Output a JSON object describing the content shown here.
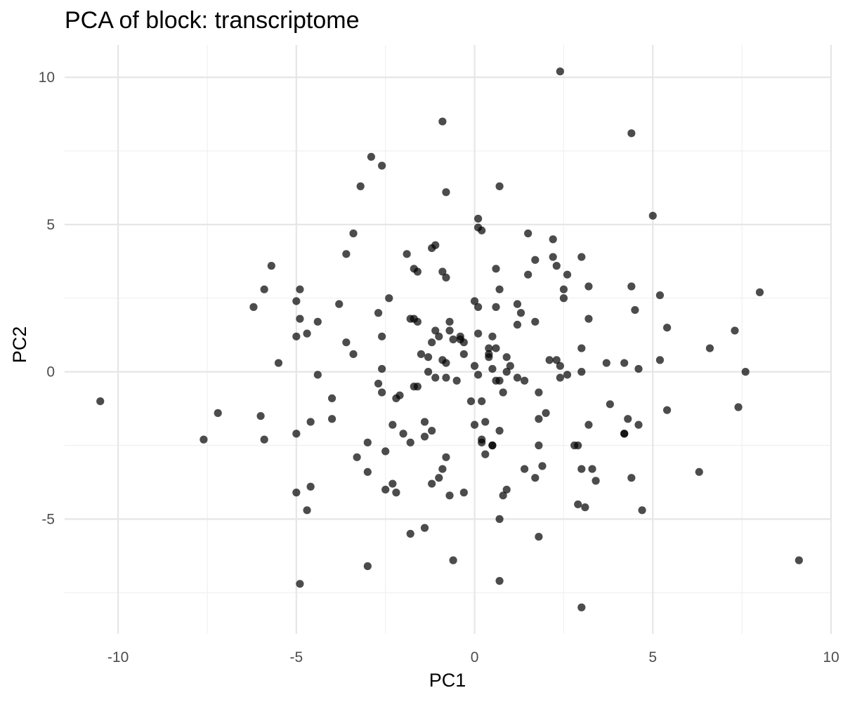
{
  "chart_data": {
    "type": "scatter",
    "title": "PCA of block: transcriptome",
    "xlabel": "PC1",
    "ylabel": "PC2",
    "xlim": [
      -11.5,
      10
    ],
    "ylim": [
      -8.9,
      11.1
    ],
    "x_ticks": [
      -10,
      -5,
      0,
      5,
      10
    ],
    "y_ticks": [
      -5,
      0,
      5,
      10
    ],
    "x_tick_labels": [
      "-10",
      "-5",
      "0",
      "5",
      "10"
    ],
    "y_tick_labels": [
      "-5",
      "0",
      "5",
      "10"
    ],
    "grid": true,
    "marker_color": "#000000",
    "marker_opacity": 0.7,
    "points": [
      [
        -10.5,
        -1.0
      ],
      [
        -7.6,
        -2.3
      ],
      [
        -7.2,
        -1.4
      ],
      [
        -6.2,
        2.2
      ],
      [
        -6.0,
        -1.5
      ],
      [
        -5.9,
        2.8
      ],
      [
        -5.9,
        -2.3
      ],
      [
        -5.7,
        3.6
      ],
      [
        -5.5,
        0.3
      ],
      [
        -5.0,
        2.4
      ],
      [
        -5.0,
        1.2
      ],
      [
        -5.0,
        -2.1
      ],
      [
        -5.0,
        -4.1
      ],
      [
        -4.9,
        2.8
      ],
      [
        -4.9,
        1.8
      ],
      [
        -4.9,
        -7.2
      ],
      [
        -4.7,
        1.3
      ],
      [
        -4.7,
        -4.7
      ],
      [
        -4.6,
        -1.7
      ],
      [
        -4.6,
        -3.9
      ],
      [
        -4.4,
        1.7
      ],
      [
        -4.4,
        -0.1
      ],
      [
        -4.0,
        -0.9
      ],
      [
        -4.0,
        -1.6
      ],
      [
        -3.8,
        2.3
      ],
      [
        -3.6,
        4.0
      ],
      [
        -3.6,
        1.0
      ],
      [
        -3.4,
        4.7
      ],
      [
        -3.4,
        0.6
      ],
      [
        -3.3,
        -2.9
      ],
      [
        -3.2,
        6.3
      ],
      [
        -3.0,
        -6.6
      ],
      [
        -3.0,
        -2.4
      ],
      [
        -3.0,
        -3.4
      ],
      [
        -2.9,
        7.3
      ],
      [
        -2.7,
        2.0
      ],
      [
        -2.7,
        -0.4
      ],
      [
        -2.6,
        7.0
      ],
      [
        -2.6,
        1.2
      ],
      [
        -2.6,
        0.1
      ],
      [
        -2.6,
        -0.7
      ],
      [
        -2.5,
        -2.7
      ],
      [
        -2.5,
        -4.0
      ],
      [
        -2.4,
        2.5
      ],
      [
        -2.3,
        -1.8
      ],
      [
        -2.3,
        -3.8
      ],
      [
        -2.2,
        -0.9
      ],
      [
        -2.2,
        -4.1
      ],
      [
        -2.1,
        -0.8
      ],
      [
        -2.0,
        -2.1
      ],
      [
        -1.9,
        4.0
      ],
      [
        -1.8,
        1.8
      ],
      [
        -1.8,
        -5.5
      ],
      [
        -1.8,
        -2.4
      ],
      [
        -1.7,
        3.5
      ],
      [
        -1.7,
        1.8
      ],
      [
        -1.7,
        -0.5
      ],
      [
        -1.6,
        -0.5
      ],
      [
        -1.6,
        3.4
      ],
      [
        -1.6,
        1.7
      ],
      [
        -1.5,
        0.6
      ],
      [
        -1.4,
        -1.7
      ],
      [
        -1.4,
        -5.3
      ],
      [
        -1.4,
        -2.2
      ],
      [
        -1.3,
        0.0
      ],
      [
        -1.3,
        0.5
      ],
      [
        -1.2,
        -2.0
      ],
      [
        -1.2,
        -3.8
      ],
      [
        -1.2,
        1.0
      ],
      [
        -1.2,
        4.2
      ],
      [
        -1.1,
        1.4
      ],
      [
        -1.1,
        -0.2
      ],
      [
        -1.1,
        4.3
      ],
      [
        -1.0,
        1.2
      ],
      [
        -1.0,
        -3.6
      ],
      [
        -0.9,
        8.5
      ],
      [
        -0.9,
        3.4
      ],
      [
        -0.9,
        0.4
      ],
      [
        -0.9,
        -3.3
      ],
      [
        -0.8,
        3.2
      ],
      [
        -0.8,
        0.3
      ],
      [
        -0.8,
        -0.2
      ],
      [
        -0.8,
        -2.9
      ],
      [
        -0.8,
        6.1
      ],
      [
        -0.7,
        1.4
      ],
      [
        -0.7,
        1.7
      ],
      [
        -0.7,
        -4.2
      ],
      [
        -0.6,
        1.1
      ],
      [
        -0.6,
        -6.4
      ],
      [
        -0.5,
        -0.3
      ],
      [
        -0.4,
        1.2
      ],
      [
        -0.4,
        1.1
      ],
      [
        -0.3,
        1.0
      ],
      [
        -0.3,
        -4.1
      ],
      [
        -0.3,
        0.6
      ],
      [
        -0.1,
        -1.0
      ],
      [
        0.0,
        2.4
      ],
      [
        0.0,
        0.2
      ],
      [
        0.0,
        -1.8
      ],
      [
        0.1,
        -0.1
      ],
      [
        0.1,
        5.2
      ],
      [
        0.1,
        4.9
      ],
      [
        0.1,
        2.2
      ],
      [
        0.1,
        1.3
      ],
      [
        0.2,
        4.8
      ],
      [
        0.2,
        -1.0
      ],
      [
        0.2,
        -2.4
      ],
      [
        0.2,
        -2.3
      ],
      [
        0.3,
        -2.8
      ],
      [
        0.3,
        -1.7
      ],
      [
        0.4,
        0.5
      ],
      [
        0.4,
        0.6
      ],
      [
        0.4,
        0.8
      ],
      [
        0.5,
        1.2
      ],
      [
        0.5,
        0.1
      ],
      [
        0.5,
        -2.5
      ],
      [
        0.5,
        -2.5
      ],
      [
        0.6,
        3.5
      ],
      [
        0.6,
        2.2
      ],
      [
        0.6,
        0.8
      ],
      [
        0.6,
        -0.3
      ],
      [
        0.7,
        -0.3
      ],
      [
        0.7,
        6.3
      ],
      [
        0.7,
        2.8
      ],
      [
        0.7,
        -2.0
      ],
      [
        0.7,
        -5.0
      ],
      [
        0.7,
        -7.1
      ],
      [
        0.8,
        -0.7
      ],
      [
        0.8,
        -4.2
      ],
      [
        0.9,
        0.5
      ],
      [
        0.9,
        0.0
      ],
      [
        0.9,
        -4.0
      ],
      [
        1.0,
        0.2
      ],
      [
        1.2,
        2.3
      ],
      [
        1.2,
        1.6
      ],
      [
        1.2,
        -0.2
      ],
      [
        1.3,
        2.0
      ],
      [
        1.4,
        -3.3
      ],
      [
        1.4,
        -0.3
      ],
      [
        1.5,
        4.7
      ],
      [
        1.5,
        3.3
      ],
      [
        1.7,
        3.8
      ],
      [
        1.7,
        1.7
      ],
      [
        1.7,
        -3.6
      ],
      [
        1.8,
        -5.6
      ],
      [
        1.8,
        -0.7
      ],
      [
        1.8,
        -1.6
      ],
      [
        1.8,
        -2.5
      ],
      [
        1.9,
        -3.2
      ],
      [
        2.0,
        -1.4
      ],
      [
        2.1,
        0.4
      ],
      [
        2.2,
        4.5
      ],
      [
        2.2,
        3.9
      ],
      [
        2.3,
        3.6
      ],
      [
        2.3,
        0.4
      ],
      [
        2.4,
        10.2
      ],
      [
        2.4,
        0.2
      ],
      [
        2.4,
        -0.2
      ],
      [
        2.5,
        2.8
      ],
      [
        2.5,
        2.5
      ],
      [
        2.6,
        -0.1
      ],
      [
        2.6,
        3.3
      ],
      [
        2.8,
        -2.5
      ],
      [
        2.9,
        -2.5
      ],
      [
        2.9,
        -4.5
      ],
      [
        3.0,
        -8.0
      ],
      [
        3.0,
        3.9
      ],
      [
        3.0,
        0.8
      ],
      [
        3.0,
        -0.0
      ],
      [
        3.0,
        -3.3
      ],
      [
        3.1,
        -4.6
      ],
      [
        3.2,
        2.9
      ],
      [
        3.2,
        1.8
      ],
      [
        3.2,
        -1.8
      ],
      [
        3.3,
        -3.3
      ],
      [
        3.4,
        -3.7
      ],
      [
        3.7,
        0.3
      ],
      [
        3.8,
        -1.1
      ],
      [
        4.2,
        0.3
      ],
      [
        4.2,
        -2.1
      ],
      [
        4.2,
        -2.1
      ],
      [
        4.3,
        -1.6
      ],
      [
        4.4,
        8.1
      ],
      [
        4.4,
        2.9
      ],
      [
        4.4,
        -3.6
      ],
      [
        4.5,
        2.1
      ],
      [
        4.6,
        0.1
      ],
      [
        4.6,
        -1.8
      ],
      [
        4.7,
        -4.7
      ],
      [
        5.0,
        5.3
      ],
      [
        5.2,
        2.6
      ],
      [
        5.2,
        0.4
      ],
      [
        5.4,
        -1.3
      ],
      [
        5.4,
        1.5
      ],
      [
        6.3,
        -3.4
      ],
      [
        6.6,
        0.8
      ],
      [
        7.3,
        1.4
      ],
      [
        7.4,
        -1.2
      ],
      [
        7.6,
        0.0
      ],
      [
        8.0,
        2.7
      ],
      [
        9.1,
        -6.4
      ]
    ]
  }
}
